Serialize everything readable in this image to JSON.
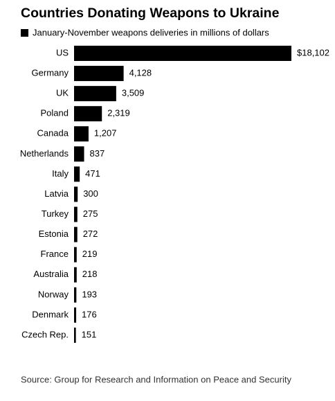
{
  "chart_data": {
    "type": "bar",
    "title": "Countries Donating Weapons to Ukraine",
    "categories": [
      "US",
      "Germany",
      "UK",
      "Poland",
      "Canada",
      "Netherlands",
      "Italy",
      "Latvia",
      "Turkey",
      "Estonia",
      "France",
      "Australia",
      "Norway",
      "Denmark",
      "Czech Rep."
    ],
    "series": [
      {
        "name": "January-November weapons deliveries in millions of dollars",
        "color": "#000000",
        "values": [
          18102,
          4128,
          3509,
          2319,
          1207,
          837,
          471,
          300,
          275,
          272,
          219,
          218,
          193,
          176,
          151
        ],
        "value_labels": [
          "$18,102",
          "4,128",
          "3,509",
          "2,319",
          "1,207",
          "837",
          "471",
          "300",
          "275",
          "272",
          "219",
          "218",
          "193",
          "176",
          "151"
        ]
      }
    ],
    "source": "Source: Group for Research and Information on Peace and Security"
  }
}
